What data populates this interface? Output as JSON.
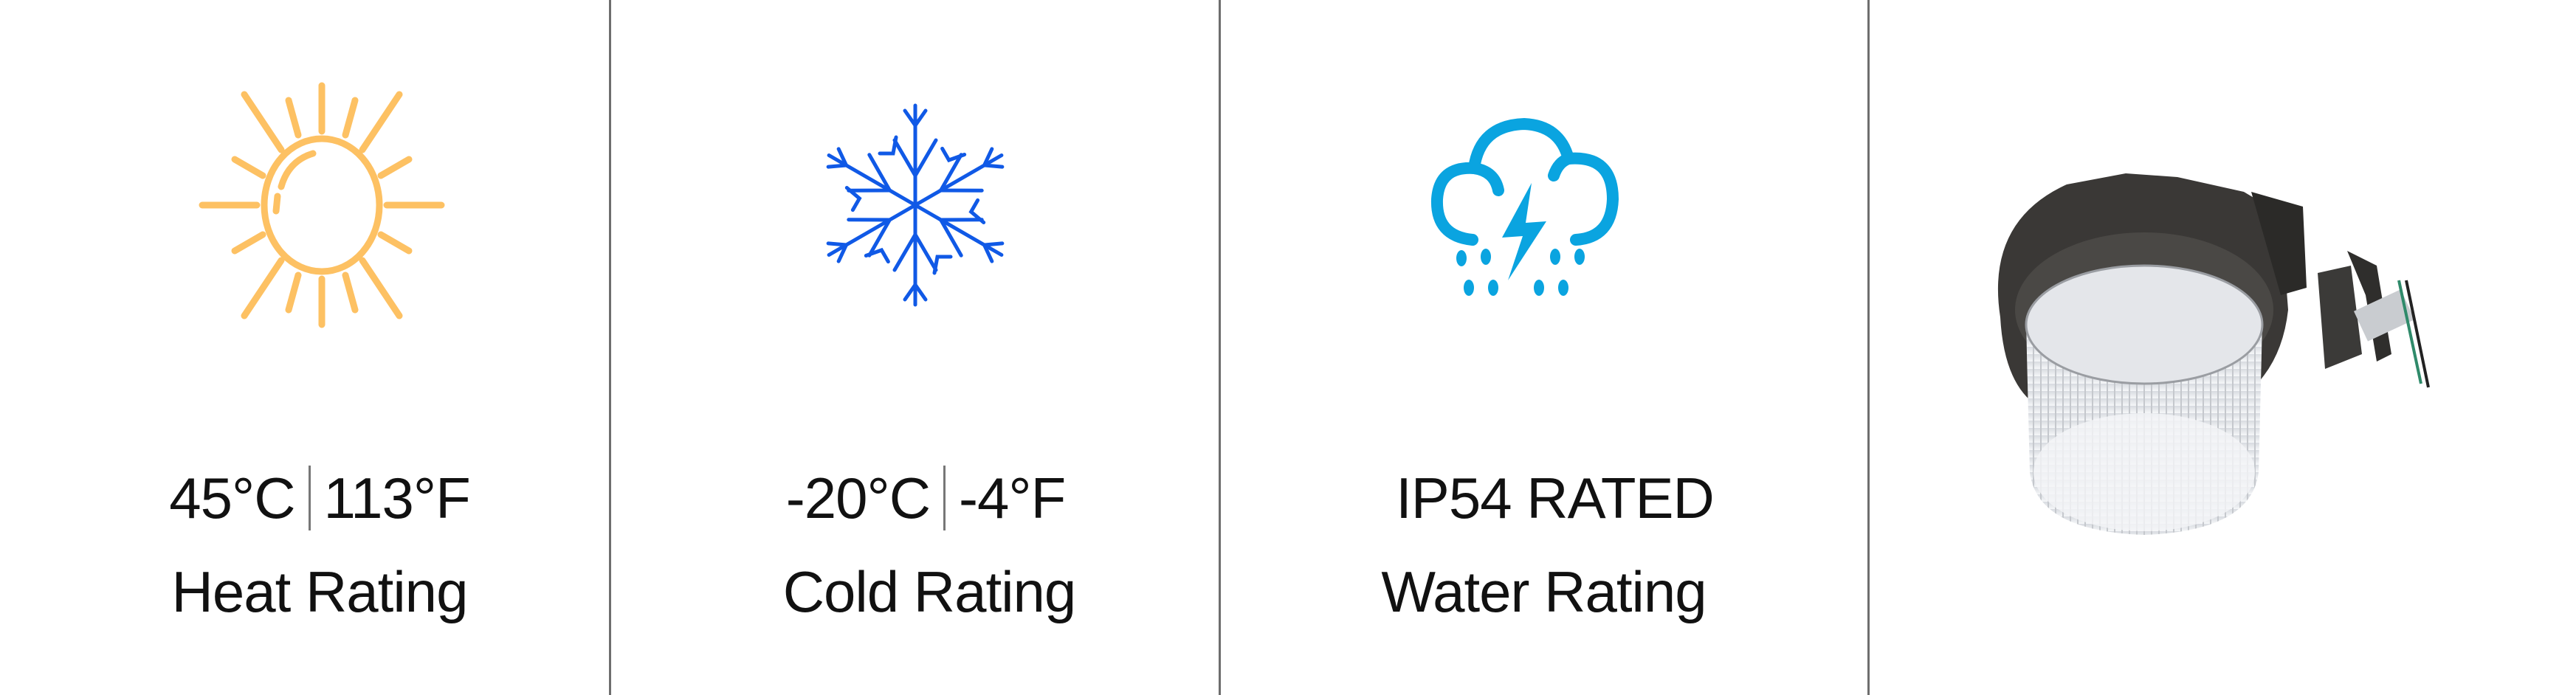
{
  "colors": {
    "sun": "#FDC163",
    "snowflake": "#1059E6",
    "cloud": "#0AA4E0",
    "divider": "#6e6e6e"
  },
  "ratings": [
    {
      "icon": "sun-icon",
      "value_c": "45°C",
      "value_f": "113°F",
      "label": "Heat Rating"
    },
    {
      "icon": "snowflake-icon",
      "value_c": "-20°C",
      "value_f": "-4°F",
      "label": "Cold Rating"
    },
    {
      "icon": "storm-cloud-icon",
      "value": "IP54 RATED",
      "label": "Water Rating"
    }
  ],
  "product": {
    "image": "led-barn-light-fixture"
  }
}
